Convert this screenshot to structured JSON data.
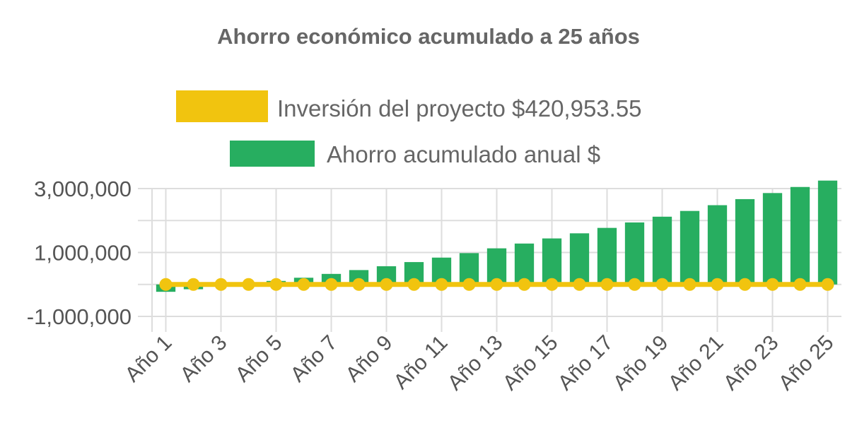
{
  "chart_data": {
    "type": "bar",
    "title": "Ahorro económico acumulado a 25 años",
    "categories": [
      "Año 1",
      "Año 2",
      "Año 3",
      "Año 4",
      "Año 5",
      "Año 6",
      "Año 7",
      "Año 8",
      "Año 9",
      "Año 10",
      "Año 11",
      "Año 12",
      "Año 13",
      "Año 14",
      "Año 15",
      "Año 16",
      "Año 17",
      "Año 18",
      "Año 19",
      "Año 20",
      "Año 21",
      "Año 22",
      "Año 23",
      "Año 24",
      "Año 25"
    ],
    "x_tick_labels": [
      "Año 1",
      "Año 3",
      "Año 5",
      "Año 7",
      "Año 9",
      "Año 11",
      "Año 13",
      "Año 15",
      "Año 17",
      "Año 19",
      "Año 21",
      "Año 23",
      "Año 25"
    ],
    "y_tick_labels": [
      "3,000,000",
      "1,000,000",
      "-1,000,000"
    ],
    "y_ticks": [
      3000000,
      1000000,
      -1000000
    ],
    "ylim": [
      -1000000,
      3000000
    ],
    "grid": true,
    "legend_position": "top",
    "series": [
      {
        "name": "Inversión del proyecto $420,953.55",
        "type": "line",
        "color": "#F1C40F",
        "values": [
          0,
          0,
          0,
          0,
          0,
          0,
          0,
          0,
          0,
          0,
          0,
          0,
          0,
          0,
          0,
          0,
          0,
          0,
          0,
          0,
          0,
          0,
          0,
          0,
          0
        ]
      },
      {
        "name": "Ahorro acumulado anual $",
        "type": "bar",
        "color": "#27AE60",
        "values": [
          -230000,
          -150000,
          -70000,
          20000,
          110000,
          210000,
          330000,
          450000,
          570000,
          700000,
          840000,
          980000,
          1130000,
          1280000,
          1440000,
          1600000,
          1770000,
          1940000,
          2120000,
          2300000,
          2480000,
          2670000,
          2860000,
          3050000,
          3250000
        ]
      }
    ]
  }
}
